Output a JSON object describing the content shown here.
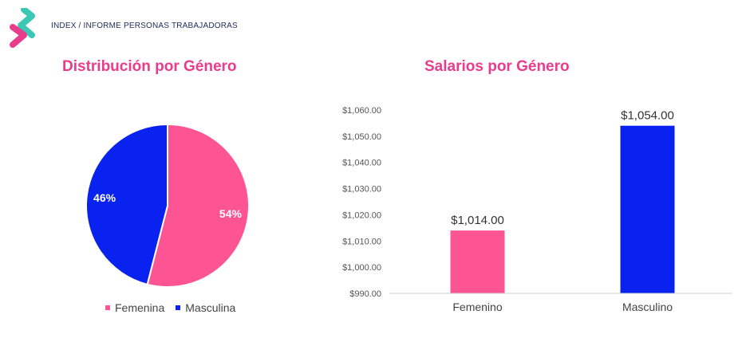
{
  "header": {
    "breadcrumb": "INDEX / INFORME PERSONAS TRABAJADORAS",
    "logo_colors": {
      "teal": "#3cc6b4",
      "pink": "#ea3c8c"
    }
  },
  "chart_data": [
    {
      "type": "pie",
      "title": "Distribución por Género",
      "labels": [
        "Femenina",
        "Masculina"
      ],
      "values": [
        54,
        46
      ],
      "value_labels": [
        "54%",
        "46%"
      ],
      "colors": [
        "#fd5593",
        "#0a22f0"
      ],
      "legend": "bottom"
    },
    {
      "type": "bar",
      "title": "Salarios por Género",
      "categories": [
        "Femenino",
        "Masculino"
      ],
      "values": [
        1014,
        1054
      ],
      "value_labels": [
        "$1,014.00",
        "$1,054.00"
      ],
      "colors": [
        "#fd5593",
        "#0a22f0"
      ],
      "ylim": [
        990,
        1060
      ],
      "yticks": [
        990,
        1000,
        1010,
        1020,
        1030,
        1040,
        1050,
        1060
      ],
      "ytick_labels": [
        "$990.00",
        "$1,000.00",
        "$1,010.00",
        "$1,020.00",
        "$1,030.00",
        "$1,040.00",
        "$1,050.00",
        "$1,060.00"
      ],
      "grid": false,
      "xlabel": "",
      "ylabel": ""
    }
  ]
}
